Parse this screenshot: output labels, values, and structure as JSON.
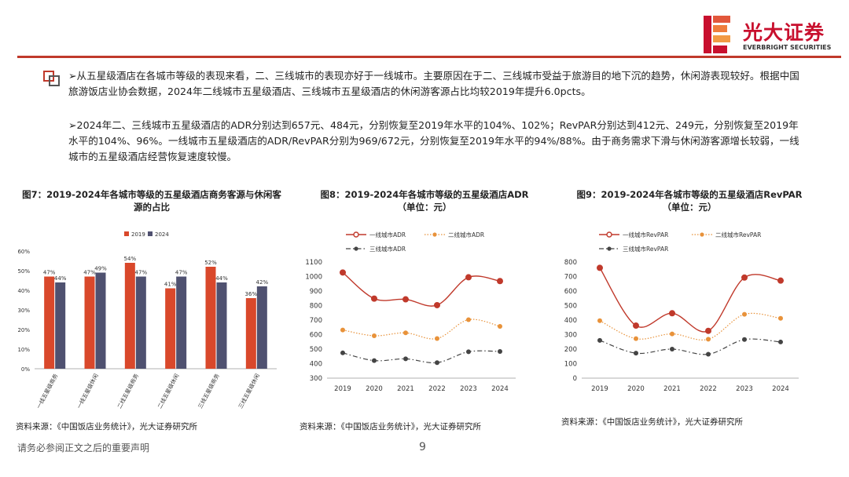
{
  "brand": {
    "name_cn": "光大证券",
    "name_en": "EVERBRIGHT SECURITIES",
    "color": "#c8102e"
  },
  "bullets": [
    "➢从五星级酒店在各城市等级的表现来看，二、三线城市的表现亦好于一线城市。主要原因在于二、三线城市受益于旅游目的地下沉的趋势，休闲游表现较好。根据中国旅游饭店业协会数据，2024年二线城市五星级酒店、三线城市五星级酒店的休闲游客源占比均较2019年提升6.0pcts。",
    "➢2024年二、三线城市五星级酒店的ADR分别达到657元、484元，分别恢复至2019年水平的104%、102%；RevPAR分别达到412元、249元，分别恢复至2019年水平的104%、96%。一线城市五星级酒店的ADR/RevPAR分别为969/672元，分别恢复至2019年水平的94%/88%。由于商务需求下滑与休闲游客源增长较弱，一线城市的五星级酒店经营恢复速度较慢。"
  ],
  "chart_titles": {
    "fig7": "图7：2019-2024年各城市等级的五星级酒店商务客源与休闲客源的占比",
    "fig8_line1": "图8：2019-2024年各城市等级的五星级酒店ADR",
    "fig8_line2": "（单位：元）",
    "fig9_line1": "图9：2019-2024年各城市等级的五星级酒店RevPAR",
    "fig9_line2": "（单位：元）"
  },
  "sources": {
    "fig7": "资料来源：《中国饭店业务统计》，光大证券研究所",
    "fig8": "资料来源：《中国饭店业务统计》，光大证券研究所",
    "fig9": "资料来源：《中国饭店业务统计》，光大证券研究所"
  },
  "footer": {
    "note": "请务必参阅正文之后的重要声明",
    "page": "9"
  },
  "chart_data": [
    {
      "type": "bar",
      "categories": [
        "一线五星级商务",
        "一线五星级休闲",
        "二线五星级商务",
        "二线五星级休闲",
        "三线五星级商务",
        "三线五星级休闲"
      ],
      "series": [
        {
          "name": "2019",
          "values": [
            47,
            47,
            54,
            41,
            52,
            36
          ],
          "color": "#d9482b"
        },
        {
          "name": "2024",
          "values": [
            44,
            49,
            47,
            47,
            44,
            42
          ],
          "color": "#4f5170"
        }
      ],
      "ylim": [
        0,
        60
      ],
      "yticks": [
        "0%",
        "10%",
        "20%",
        "30%",
        "40%",
        "50%",
        "60%"
      ],
      "ytick_values": [
        0,
        10,
        20,
        30,
        40,
        50,
        60
      ],
      "legend": "top-left",
      "grid": false
    },
    {
      "type": "line",
      "x": [
        "2019",
        "2020",
        "2021",
        "2022",
        "2023",
        "2024"
      ],
      "series": [
        {
          "name": "一线城市ADR",
          "values": [
            1028,
            848,
            843,
            803,
            995,
            969
          ],
          "color": "#c0392b",
          "style": "solid-thick"
        },
        {
          "name": "二线城市ADR",
          "values": [
            632,
            592,
            612,
            573,
            703,
            657
          ],
          "color": "#e8923a",
          "style": "dotted"
        },
        {
          "name": "三线城市ADR",
          "values": [
            474,
            421,
            433,
            407,
            482,
            484
          ],
          "color": "#444444",
          "style": "dashdot"
        }
      ],
      "ylim": [
        300,
        1100
      ],
      "yticks": [
        300,
        400,
        500,
        600,
        700,
        800,
        900,
        1000,
        1100
      ],
      "legend": "top",
      "grid": false
    },
    {
      "type": "line",
      "x": [
        "2019",
        "2020",
        "2021",
        "2022",
        "2023",
        "2024"
      ],
      "series": [
        {
          "name": "一线城市RevPAR",
          "values": [
            760,
            362,
            447,
            326,
            693,
            672
          ],
          "color": "#c0392b",
          "style": "solid-thick"
        },
        {
          "name": "二线城市RevPAR",
          "values": [
            396,
            272,
            305,
            268,
            440,
            412
          ],
          "color": "#e8923a",
          "style": "dotted"
        },
        {
          "name": "三线城市RevPAR",
          "values": [
            260,
            172,
            200,
            165,
            266,
            249
          ],
          "color": "#444444",
          "style": "dashdot"
        }
      ],
      "ylim": [
        0,
        800
      ],
      "yticks": [
        0,
        100,
        200,
        300,
        400,
        500,
        600,
        700,
        800
      ],
      "legend": "top",
      "grid": false
    }
  ]
}
